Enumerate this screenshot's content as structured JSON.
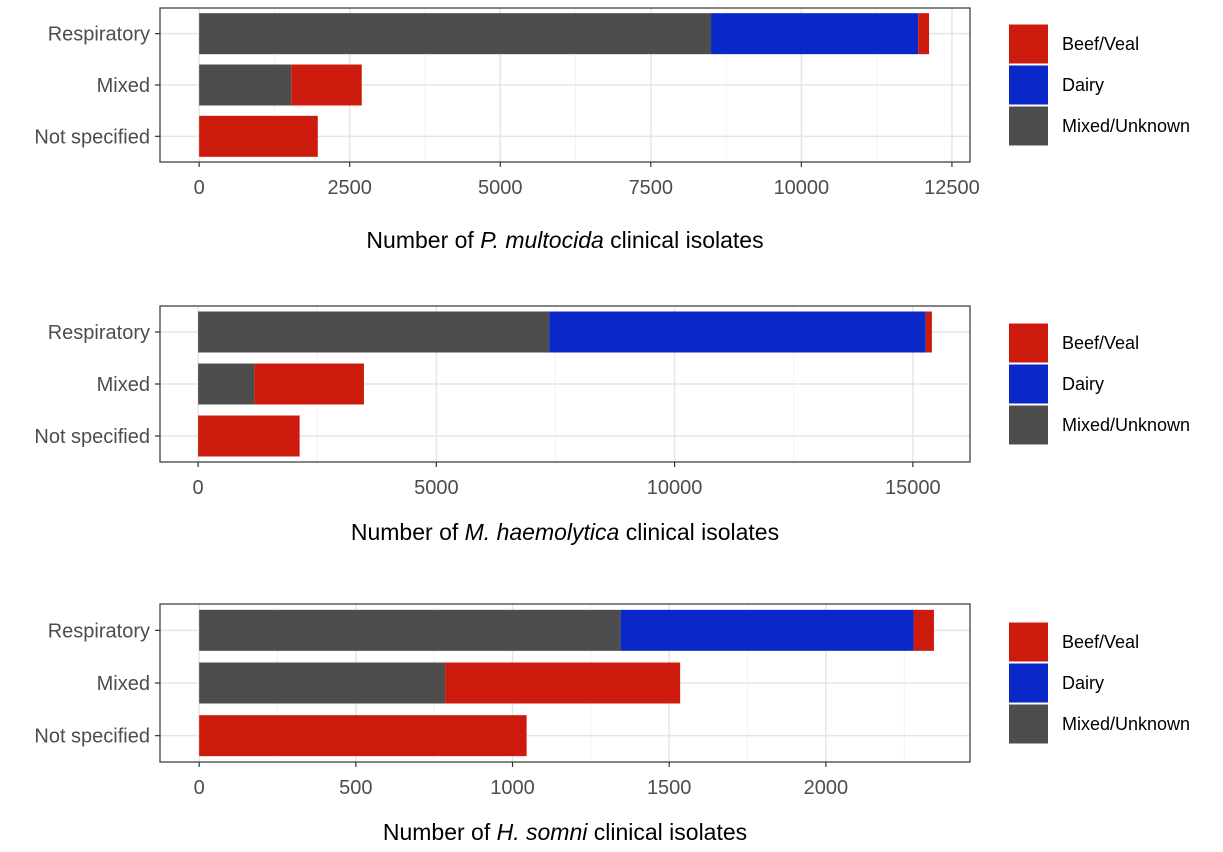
{
  "colors": {
    "beef_veal": "#cc1b0c",
    "dairy": "#0a27c8",
    "mixed_unknown": "#4d4d4d",
    "grid_major": "#e6e6e6",
    "grid_minor": "#f2f2f2",
    "panel_border": "#333333"
  },
  "legend": {
    "items": [
      {
        "key": "beef_veal",
        "label": "Beef/Veal"
      },
      {
        "key": "dairy",
        "label": "Dairy"
      },
      {
        "key": "mixed_unknown",
        "label": "Mixed/Unknown"
      }
    ]
  },
  "chart_data": [
    {
      "type": "bar",
      "orientation": "horizontal",
      "stacked": true,
      "xlabel_prefix": "Number of",
      "xlabel_species": "P. multocida",
      "xlabel_suffix": "clinical isolates",
      "categories": [
        "Respiratory",
        "Mixed",
        "Not specified"
      ],
      "series": [
        {
          "name": "Mixed/Unknown",
          "key": "mixed_unknown",
          "values": [
            8500,
            1530,
            0
          ]
        },
        {
          "name": "Dairy",
          "key": "dairy",
          "values": [
            3440,
            0,
            0
          ]
        },
        {
          "name": "Beef/Veal",
          "key": "beef_veal",
          "values": [
            180,
            1170,
            1970
          ]
        }
      ],
      "xlim": [
        -650,
        12800
      ],
      "xticks": [
        0,
        2500,
        5000,
        7500,
        10000,
        12500
      ],
      "xtick_labels": [
        "0",
        "2500",
        "5000",
        "7500",
        "10000",
        "12500"
      ],
      "grid": true,
      "legend_position": "right"
    },
    {
      "type": "bar",
      "orientation": "horizontal",
      "stacked": true,
      "xlabel_prefix": "Number of",
      "xlabel_species": "M. haemolytica",
      "xlabel_suffix": "clinical isolates",
      "categories": [
        "Respiratory",
        "Mixed",
        "Not specified"
      ],
      "series": [
        {
          "name": "Mixed/Unknown",
          "key": "mixed_unknown",
          "values": [
            7370,
            1180,
            0
          ]
        },
        {
          "name": "Dairy",
          "key": "dairy",
          "values": [
            7900,
            0,
            0
          ]
        },
        {
          "name": "Beef/Veal",
          "key": "beef_veal",
          "values": [
            130,
            2300,
            2130
          ]
        }
      ],
      "xlim": [
        -800,
        16200
      ],
      "xticks": [
        0,
        5000,
        10000,
        15000
      ],
      "xtick_labels": [
        "0",
        "5000",
        "10000",
        "15000"
      ],
      "grid": true,
      "legend_position": "right"
    },
    {
      "type": "bar",
      "orientation": "horizontal",
      "stacked": true,
      "xlabel_prefix": "Number of",
      "xlabel_species": "H. somni",
      "xlabel_suffix": "clinical isolates",
      "categories": [
        "Respiratory",
        "Mixed",
        "Not specified"
      ],
      "series": [
        {
          "name": "Mixed/Unknown",
          "key": "mixed_unknown",
          "values": [
            1345,
            785,
            0
          ]
        },
        {
          "name": "Dairy",
          "key": "dairy",
          "values": [
            935,
            0,
            0
          ]
        },
        {
          "name": "Beef/Veal",
          "key": "beef_veal",
          "values": [
            65,
            750,
            1045
          ]
        }
      ],
      "xlim": [
        -125,
        2460
      ],
      "xticks": [
        0,
        500,
        1000,
        1500,
        2000
      ],
      "xtick_labels": [
        "0",
        "500",
        "1000",
        "1500",
        "2000"
      ],
      "grid": true,
      "legend_position": "right"
    }
  ]
}
